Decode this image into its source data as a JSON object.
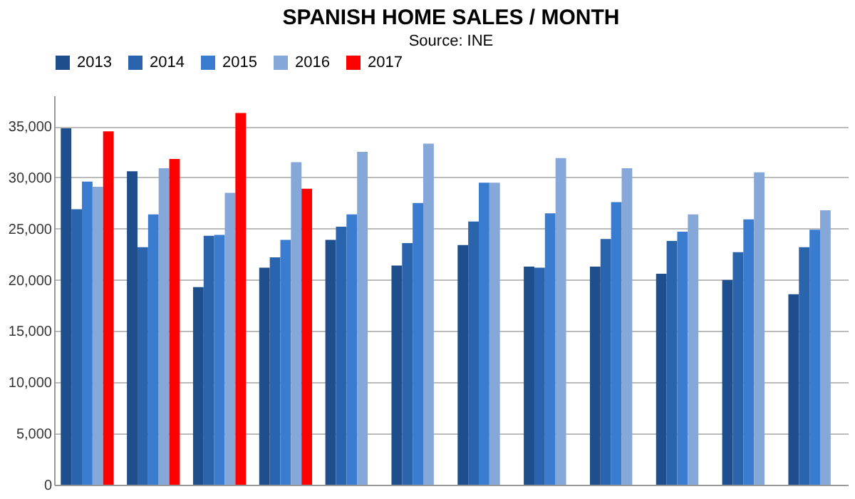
{
  "chart_data": {
    "type": "bar",
    "title": "SPANISH HOME SALES / MONTH",
    "subtitle": "Source: INE",
    "categories": [
      null,
      null,
      null,
      null,
      null,
      null,
      null,
      null,
      null,
      null,
      null,
      null
    ],
    "series": [
      {
        "name": "2013",
        "color": "#1f4e8c",
        "values": [
          34800,
          30600,
          19300,
          21200,
          23900,
          21400,
          23400,
          21300,
          21300,
          20600,
          20000,
          18600
        ]
      },
      {
        "name": "2014",
        "color": "#2a64ad",
        "values": [
          26900,
          23200,
          24300,
          22200,
          25200,
          23600,
          25700,
          21200,
          24000,
          23800,
          22700,
          23200
        ]
      },
      {
        "name": "2015",
        "color": "#3a7dd0",
        "values": [
          29600,
          26400,
          24400,
          23900,
          26400,
          27500,
          29500,
          26500,
          27600,
          24700,
          25900,
          24900
        ]
      },
      {
        "name": "2016",
        "color": "#86a8d8",
        "values": [
          29100,
          30900,
          28500,
          31500,
          32500,
          33300,
          29500,
          31900,
          30900,
          26400,
          30500,
          26800
        ]
      },
      {
        "name": "2017",
        "color": "#ff0000",
        "values": [
          34500,
          31800,
          36300,
          28900,
          null,
          null,
          null,
          null,
          null,
          null,
          null,
          null
        ]
      }
    ],
    "ylim": [
      0,
      38000
    ],
    "yticks": [
      0,
      {
        "value": 5000,
        "label": "5,000"
      },
      {
        "value": 10000,
        "label": "10,000"
      },
      {
        "value": 15000,
        "label": "15,000"
      },
      {
        "value": 20000,
        "label": "20,000"
      },
      {
        "value": 25000,
        "label": "25,000"
      },
      {
        "value": 30000,
        "label": "30,000"
      },
      {
        "value": 35000,
        "label": "35,000"
      }
    ],
    "grid": "y",
    "legend": "top",
    "tick_labels": "y"
  }
}
